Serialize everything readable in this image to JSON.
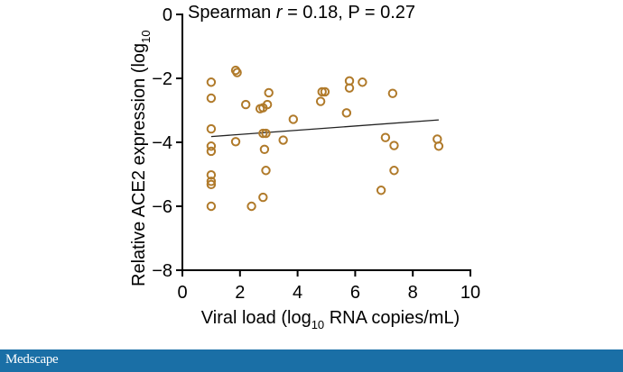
{
  "chart_data": {
    "type": "scatter",
    "annotation": {
      "prefix": "Spearman ",
      "r_symbol": "r",
      "suffix": " = 0.18, P = 0.27"
    },
    "xlabel": {
      "main": "Viral load (log",
      "sub": "10",
      "rest": " RNA copies/mL)"
    },
    "ylabel": {
      "main": "Relative ACE2 expression (log",
      "sub": "10"
    },
    "xlim": [
      0,
      10
    ],
    "ylim": [
      -8,
      0
    ],
    "xticks": [
      "0",
      "2",
      "4",
      "6",
      "8",
      "10"
    ],
    "yticks": [
      "0",
      "-2",
      "-4",
      "-6",
      "-8"
    ],
    "grid": false,
    "marker_color": "#b07a2a",
    "line_color": "#222222",
    "trendline": {
      "x": [
        1.0,
        8.9
      ],
      "y": [
        -3.82,
        -3.3
      ]
    },
    "points": [
      {
        "x": 1.0,
        "y": -2.12
      },
      {
        "x": 1.0,
        "y": -2.62
      },
      {
        "x": 1.0,
        "y": -3.58
      },
      {
        "x": 1.0,
        "y": -4.12
      },
      {
        "x": 1.0,
        "y": -4.28
      },
      {
        "x": 1.0,
        "y": -5.02
      },
      {
        "x": 1.0,
        "y": -5.22
      },
      {
        "x": 1.0,
        "y": -5.32
      },
      {
        "x": 1.0,
        "y": -6.0
      },
      {
        "x": 1.85,
        "y": -1.75
      },
      {
        "x": 1.9,
        "y": -1.82
      },
      {
        "x": 1.85,
        "y": -3.98
      },
      {
        "x": 2.2,
        "y": -2.82
      },
      {
        "x": 2.4,
        "y": -6.0
      },
      {
        "x": 2.7,
        "y": -2.95
      },
      {
        "x": 2.8,
        "y": -2.92
      },
      {
        "x": 2.8,
        "y": -3.72
      },
      {
        "x": 2.9,
        "y": -3.72
      },
      {
        "x": 2.8,
        "y": -5.72
      },
      {
        "x": 2.85,
        "y": -4.22
      },
      {
        "x": 2.9,
        "y": -4.88
      },
      {
        "x": 2.95,
        "y": -2.82
      },
      {
        "x": 3.0,
        "y": -2.45
      },
      {
        "x": 3.5,
        "y": -3.93
      },
      {
        "x": 3.85,
        "y": -3.28
      },
      {
        "x": 4.8,
        "y": -2.72
      },
      {
        "x": 4.85,
        "y": -2.42
      },
      {
        "x": 4.95,
        "y": -2.42
      },
      {
        "x": 5.7,
        "y": -3.08
      },
      {
        "x": 5.8,
        "y": -2.08
      },
      {
        "x": 5.8,
        "y": -2.3
      },
      {
        "x": 6.25,
        "y": -2.12
      },
      {
        "x": 6.9,
        "y": -5.5
      },
      {
        "x": 7.05,
        "y": -3.85
      },
      {
        "x": 7.3,
        "y": -2.47
      },
      {
        "x": 7.35,
        "y": -4.1
      },
      {
        "x": 7.35,
        "y": -4.88
      },
      {
        "x": 8.85,
        "y": -3.9
      },
      {
        "x": 8.9,
        "y": -4.12
      }
    ]
  },
  "footer": {
    "brand": "Medscape"
  }
}
